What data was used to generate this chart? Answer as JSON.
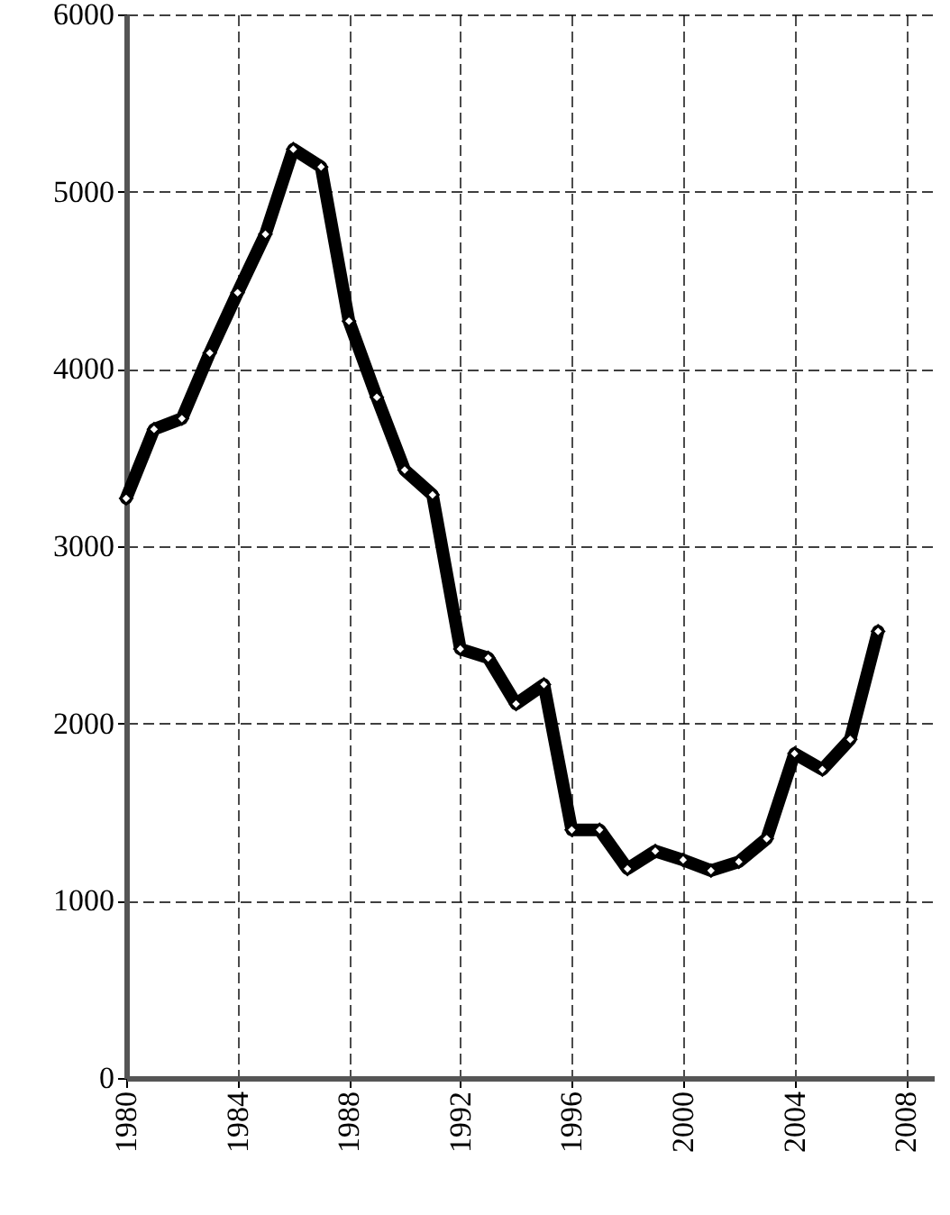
{
  "chart_data": {
    "type": "line",
    "x": [
      1980,
      1981,
      1982,
      1983,
      1984,
      1985,
      1986,
      1987,
      1988,
      1989,
      1990,
      1991,
      1992,
      1993,
      1994,
      1995,
      1996,
      1997,
      1998,
      1999,
      2000,
      2001,
      2002,
      2003,
      2004,
      2005,
      2006,
      2007
    ],
    "series": [
      {
        "color": "#000000",
        "values": [
          3270,
          3660,
          3720,
          4090,
          4430,
          4760,
          5240,
          5140,
          4270,
          3840,
          3430,
          3290,
          2420,
          2370,
          2110,
          2220,
          1400,
          1400,
          1180,
          1280,
          1230,
          1170,
          1220,
          1350,
          1830,
          1740,
          1910,
          2520
        ]
      }
    ],
    "xlim": [
      1980,
      2009
    ],
    "xticks": [
      1980,
      1984,
      1988,
      1992,
      1996,
      2000,
      2004,
      2008
    ],
    "ylim": [
      0,
      6000
    ],
    "yticks": [
      0,
      1000,
      2000,
      3000,
      4000,
      5000,
      6000
    ],
    "grid": true,
    "marker": "diamond",
    "line_style": "solid"
  }
}
